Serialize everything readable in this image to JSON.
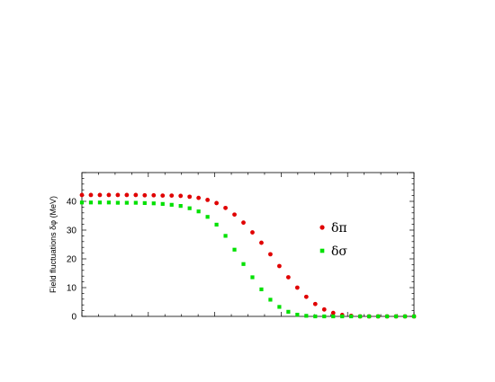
{
  "chart_data": {
    "type": "scatter",
    "title": "",
    "xlabel": "",
    "ylabel": "Field fluctuations δφ (MeV)",
    "xlim": [
      0,
      37
    ],
    "ylim": [
      0,
      50
    ],
    "yticks": [
      0,
      10,
      20,
      30,
      40
    ],
    "grid": false,
    "legend_position": "right",
    "series": [
      {
        "name": "δπ",
        "color": "#e00000",
        "marker": "circle",
        "x": [
          0,
          1,
          2,
          3,
          4,
          5,
          6,
          7,
          8,
          9,
          10,
          11,
          12,
          13,
          14,
          15,
          16,
          17,
          18,
          19,
          20,
          21,
          22,
          23,
          24,
          25,
          26,
          27,
          28,
          29,
          30,
          31,
          32,
          33,
          34,
          35,
          36,
          37
        ],
        "y": [
          42.2,
          42.2,
          42.2,
          42.2,
          42.2,
          42.2,
          42.2,
          42.1,
          42.1,
          42.0,
          42.0,
          41.9,
          41.6,
          41.2,
          40.5,
          39.4,
          37.7,
          35.4,
          32.6,
          29.2,
          25.6,
          21.6,
          17.5,
          13.6,
          10.0,
          6.8,
          4.3,
          2.4,
          1.2,
          0.5,
          0.2,
          0,
          0,
          0,
          0,
          0,
          0,
          0
        ]
      },
      {
        "name": "δσ",
        "color": "#00e000",
        "marker": "square",
        "x": [
          0,
          1,
          2,
          3,
          4,
          5,
          6,
          7,
          8,
          9,
          10,
          11,
          12,
          13,
          14,
          15,
          16,
          17,
          18,
          19,
          20,
          21,
          22,
          23,
          24,
          25,
          26,
          27,
          28,
          29,
          30,
          31,
          32,
          33,
          34,
          35,
          36,
          37
        ],
        "y": [
          39.6,
          39.6,
          39.6,
          39.6,
          39.5,
          39.5,
          39.5,
          39.4,
          39.3,
          39.1,
          38.8,
          38.4,
          37.6,
          36.5,
          34.6,
          31.9,
          28.0,
          23.2,
          18.2,
          13.6,
          9.4,
          5.8,
          3.3,
          1.6,
          0.6,
          0.2,
          0,
          0,
          0,
          0,
          0,
          0,
          0,
          0,
          0,
          0,
          0,
          0
        ]
      }
    ]
  }
}
